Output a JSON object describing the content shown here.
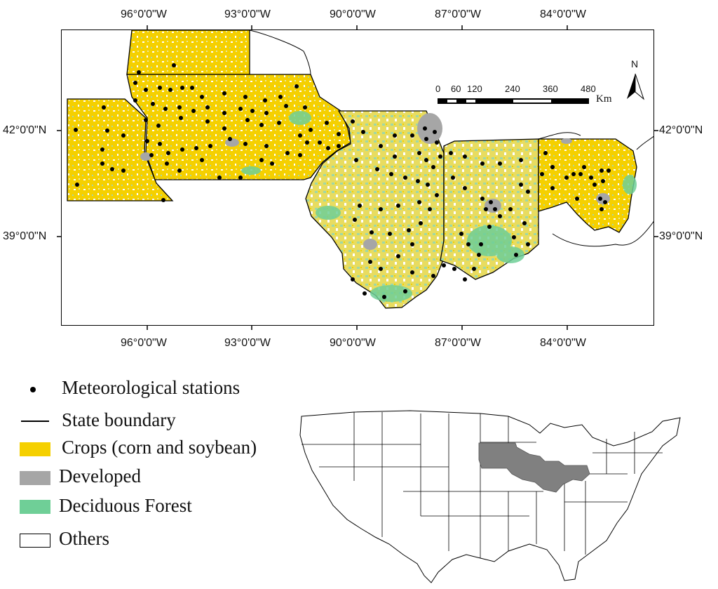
{
  "map": {
    "longitude_labels": [
      "96°0'0\"W",
      "93°0'0\"W",
      "90°0'0\"W",
      "87°0'0\"W",
      "84°0'0\"W"
    ],
    "latitude_labels": [
      "42°0'0\"N",
      "39°0'0\"N"
    ],
    "scale_bar": {
      "ticks": [
        "0",
        "60",
        "120",
        "240",
        "360",
        "480"
      ],
      "unit": "Km"
    },
    "north_arrow_label": "N"
  },
  "legend": {
    "stations_label": "Meteorological stations",
    "boundary_label": "State boundary",
    "crops_label": "Crops (corn and soybean)",
    "developed_label": "Developed",
    "forest_label": "Deciduous Forest",
    "others_label": "Others"
  },
  "colors": {
    "crops": "#f5d000",
    "developed": "#a6a6a6",
    "forest": "#6fcf97",
    "others": "#ffffff",
    "highlight": "#808080"
  }
}
